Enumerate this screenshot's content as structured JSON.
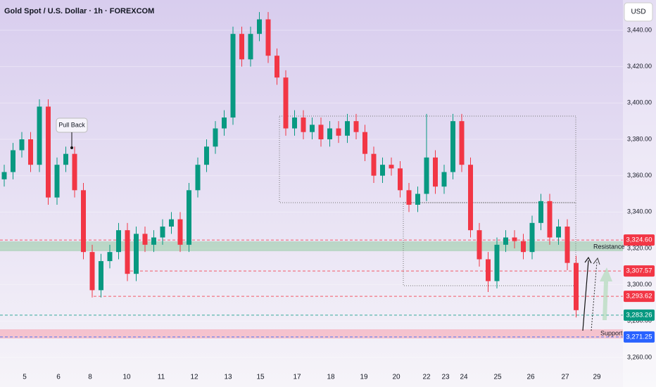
{
  "chart_data": {
    "type": "candlestick",
    "title": "Gold Spot / U.S. Dollar · 1h · FOREXCOM",
    "currency": "USD",
    "ylim": [
      3255.35,
      3456.65
    ],
    "yticks": [
      {
        "value": 3260,
        "label": "3,260.00"
      },
      {
        "value": 3280,
        "label": "3,280.00"
      },
      {
        "value": 3300,
        "label": "3,300.00"
      },
      {
        "value": 3320,
        "label": "3,320.00"
      },
      {
        "value": 3340,
        "label": "3,340.00"
      },
      {
        "value": 3360,
        "label": "3,360.00"
      },
      {
        "value": 3380,
        "label": "3,380.00"
      },
      {
        "value": 3400,
        "label": "3,400.00"
      },
      {
        "value": 3420,
        "label": "3,420.00"
      },
      {
        "value": 3440,
        "label": "3,440.00"
      }
    ],
    "x_labels": [
      "5",
      "6",
      "8",
      "10",
      "11",
      "12",
      "13",
      "15",
      "17",
      "18",
      "19",
      "20",
      "22",
      "23",
      "24",
      "25",
      "26",
      "27",
      "29"
    ],
    "up_color": "#089981",
    "down_color": "#f23645",
    "open": [
      3358,
      3362,
      3374,
      3380,
      3366,
      3398,
      3348,
      3366,
      3372,
      3352,
      3318,
      3297,
      3313,
      3318,
      3330,
      3306,
      3328,
      3322,
      3326,
      3332,
      3336,
      3322,
      3352,
      3366,
      3376,
      3386,
      3392,
      3438,
      3424,
      3438,
      3446,
      3426,
      3414,
      3386,
      3392,
      3384,
      3388,
      3380,
      3386,
      3382,
      3390,
      3384,
      3372,
      3360,
      3366,
      3364,
      3352,
      3344,
      3350,
      3370,
      3354,
      3362,
      3390,
      3366,
      3330,
      3314,
      3302,
      3322,
      3326,
      3324,
      3318,
      3334,
      3346,
      3326,
      3332,
      3312
    ],
    "high": [
      3366,
      3378,
      3384,
      3384,
      3402,
      3402,
      3370,
      3376,
      3376,
      3356,
      3322,
      3317,
      3322,
      3334,
      3334,
      3332,
      3332,
      3330,
      3336,
      3340,
      3340,
      3356,
      3370,
      3380,
      3390,
      3396,
      3442,
      3442,
      3442,
      3450,
      3450,
      3430,
      3418,
      3396,
      3396,
      3392,
      3392,
      3390,
      3390,
      3394,
      3394,
      3388,
      3376,
      3370,
      3370,
      3368,
      3356,
      3354,
      3394,
      3374,
      3366,
      3394,
      3394,
      3370,
      3334,
      3318,
      3326,
      3330,
      3330,
      3328,
      3338,
      3350,
      3350,
      3336,
      3336,
      3316
    ],
    "low": [
      3354,
      3358,
      3370,
      3362,
      3362,
      3344,
      3344,
      3362,
      3348,
      3314,
      3293,
      3293,
      3309,
      3314,
      3302,
      3302,
      3318,
      3318,
      3322,
      3328,
      3318,
      3318,
      3348,
      3362,
      3372,
      3382,
      3388,
      3420,
      3420,
      3434,
      3422,
      3410,
      3382,
      3382,
      3380,
      3380,
      3376,
      3376,
      3378,
      3378,
      3380,
      3368,
      3356,
      3356,
      3360,
      3348,
      3340,
      3340,
      3346,
      3350,
      3350,
      3358,
      3362,
      3326,
      3310,
      3296,
      3298,
      3318,
      3320,
      3314,
      3314,
      3330,
      3322,
      3322,
      3308,
      3282
    ],
    "close": [
      3362,
      3374,
      3380,
      3366,
      3398,
      3348,
      3366,
      3372,
      3352,
      3318,
      3297,
      3313,
      3318,
      3330,
      3306,
      3328,
      3322,
      3326,
      3332,
      3336,
      3322,
      3352,
      3366,
      3376,
      3386,
      3392,
      3438,
      3424,
      3438,
      3446,
      3426,
      3414,
      3386,
      3392,
      3384,
      3388,
      3380,
      3386,
      3382,
      3390,
      3384,
      3372,
      3360,
      3366,
      3364,
      3352,
      3344,
      3350,
      3370,
      3354,
      3362,
      3390,
      3366,
      3330,
      3314,
      3302,
      3322,
      3326,
      3324,
      3318,
      3334,
      3346,
      3326,
      3332,
      3312,
      3286
    ],
    "price_labels": [
      {
        "value": 3324.6,
        "label": "3,324.60",
        "color": "#f23645"
      },
      {
        "value": 3307.57,
        "label": "3,307.57",
        "color": "#f23645"
      },
      {
        "value": 3293.62,
        "label": "3,293.62",
        "color": "#f23645"
      },
      {
        "value": 3283.26,
        "label": "3,283.26",
        "color": "#089981"
      },
      {
        "value": 3271.25,
        "label": "3,271.25",
        "color": "#2962ff"
      }
    ],
    "annotations": {
      "pull_back": "Pull Back",
      "resistance": "Resistance",
      "support": "Support"
    }
  }
}
